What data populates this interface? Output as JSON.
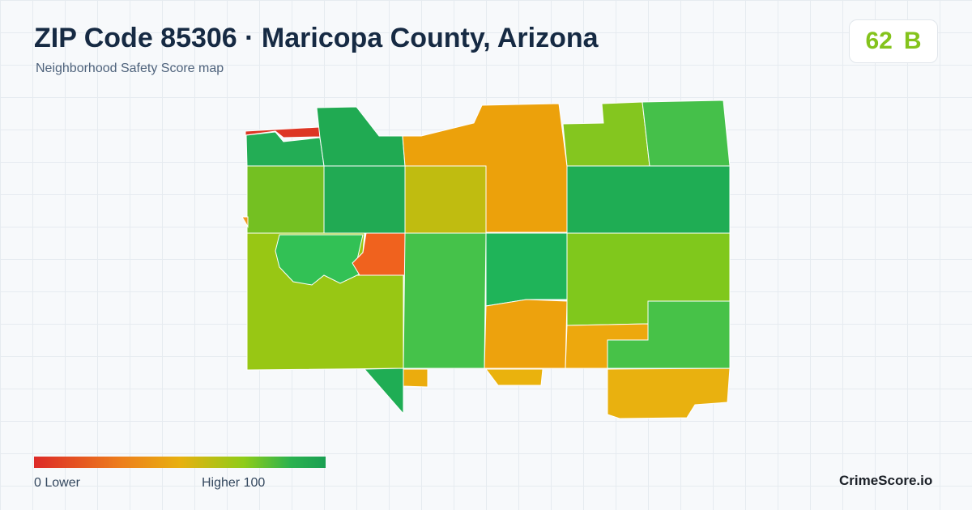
{
  "header": {
    "title": "ZIP Code 85306 · Maricopa County, Arizona",
    "subtitle": "Neighborhood Safety Score map"
  },
  "score": {
    "value": "62",
    "grade": "B",
    "color": "#84c31c"
  },
  "legend": {
    "low_label": "0  Lower",
    "high_label": "Higher  100",
    "low_color": "#dd2a28",
    "high_color": "#1a9f52"
  },
  "brand": "CrimeScore.io",
  "map": {
    "areas": [
      {
        "name": "nw-strip",
        "color": "#dd3625"
      },
      {
        "name": "nw-corner",
        "color": "#23ad55"
      },
      {
        "name": "north-1",
        "color": "#20aa52"
      },
      {
        "name": "north-center",
        "color": "#eca10b"
      },
      {
        "name": "north-east-1",
        "color": "#84c61f"
      },
      {
        "name": "north-east-2",
        "color": "#45c04a"
      },
      {
        "name": "west-1",
        "color": "#74c022"
      },
      {
        "name": "central-1",
        "color": "#21aa53"
      },
      {
        "name": "central-2",
        "color": "#c0bc10"
      },
      {
        "name": "east-band",
        "color": "#1fad54"
      },
      {
        "name": "southwest-large",
        "color": "#98c714"
      },
      {
        "name": "green-blob",
        "color": "#32c155"
      },
      {
        "name": "red-hotspot",
        "color": "#f0621e"
      },
      {
        "name": "south-center-1",
        "color": "#45c24a"
      },
      {
        "name": "south-center-2",
        "color": "#1fb459"
      },
      {
        "name": "south-east-1",
        "color": "#80c81c"
      },
      {
        "name": "south-orange-1",
        "color": "#eda20d"
      },
      {
        "name": "south-orange-2",
        "color": "#eda80d"
      },
      {
        "name": "southeast-green",
        "color": "#47c248"
      },
      {
        "name": "south-tail",
        "color": "#1fad54"
      },
      {
        "name": "south-small-1",
        "color": "#ebac0d"
      },
      {
        "name": "south-small-2",
        "color": "#eab20d"
      },
      {
        "name": "southeast-bottom",
        "color": "#e9b10f"
      },
      {
        "name": "west-notch",
        "color": "#f09a22"
      }
    ]
  }
}
